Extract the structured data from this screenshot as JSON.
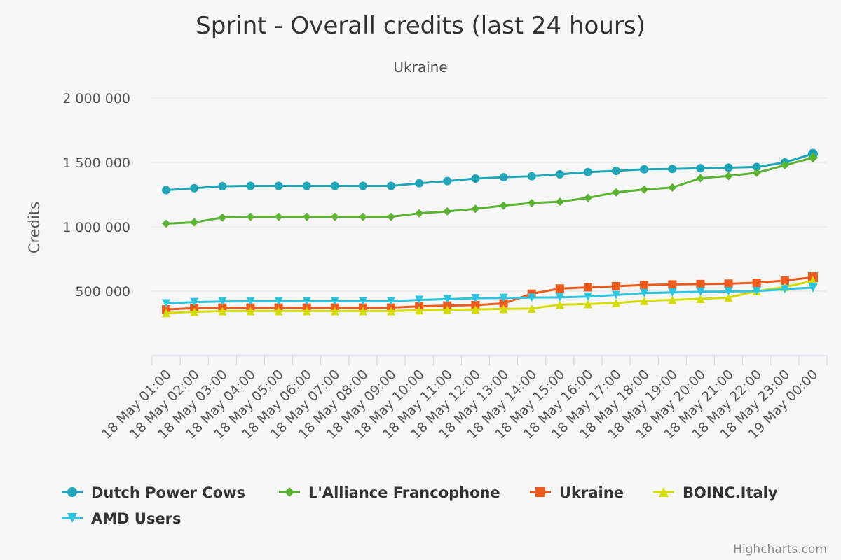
{
  "chart_data": {
    "type": "line",
    "title": "Sprint - Overall credits (last 24 hours)",
    "subtitle": "Ukraine",
    "ylabel": "Credits",
    "xlabel": "",
    "ylim": [
      0,
      2000000
    ],
    "y_ticks": [
      {
        "value": 500000,
        "label": "500 000"
      },
      {
        "value": 1000000,
        "label": "1 000 000"
      },
      {
        "value": 1500000,
        "label": "1 500 000"
      },
      {
        "value": 2000000,
        "label": "2 000 000"
      }
    ],
    "categories": [
      "18 May 01:00",
      "18 May 02:00",
      "18 May 03:00",
      "18 May 04:00",
      "18 May 05:00",
      "18 May 06:00",
      "18 May 07:00",
      "18 May 08:00",
      "18 May 09:00",
      "18 May 10:00",
      "18 May 11:00",
      "18 May 12:00",
      "18 May 13:00",
      "18 May 14:00",
      "18 May 15:00",
      "18 May 16:00",
      "18 May 17:00",
      "18 May 18:00",
      "18 May 19:00",
      "18 May 20:00",
      "18 May 21:00",
      "18 May 22:00",
      "18 May 23:00",
      "19 May 00:00"
    ],
    "grid": {
      "horizontal": true,
      "vertical": false
    },
    "legend_position": "bottom",
    "series": [
      {
        "name": "Dutch Power Cows",
        "color": "#20a6b8",
        "marker": "circle",
        "values": [
          1285000,
          1300000,
          1315000,
          1318000,
          1318000,
          1318000,
          1318000,
          1318000,
          1318000,
          1338000,
          1355000,
          1375000,
          1385000,
          1393000,
          1408000,
          1425000,
          1435000,
          1447000,
          1450000,
          1455000,
          1460000,
          1465000,
          1500000,
          1567000
        ]
      },
      {
        "name": "L'Alliance Francophone",
        "color": "#5bb332",
        "marker": "diamond",
        "values": [
          1025000,
          1035000,
          1072000,
          1078000,
          1078000,
          1078000,
          1078000,
          1078000,
          1078000,
          1105000,
          1120000,
          1140000,
          1165000,
          1185000,
          1195000,
          1225000,
          1268000,
          1290000,
          1305000,
          1378000,
          1395000,
          1420000,
          1478000,
          1537000
        ]
      },
      {
        "name": "Ukraine",
        "color": "#ec5a1e",
        "marker": "square",
        "values": [
          358000,
          368000,
          372000,
          372000,
          372000,
          372000,
          372000,
          372000,
          372000,
          382000,
          388000,
          392000,
          405000,
          480000,
          520000,
          530000,
          538000,
          548000,
          552000,
          555000,
          558000,
          565000,
          582000,
          608000
        ]
      },
      {
        "name": "BOINC.Italy",
        "color": "#d4dc00",
        "marker": "triangle",
        "values": [
          330000,
          340000,
          345000,
          346000,
          346000,
          346000,
          346000,
          346000,
          346000,
          352000,
          355000,
          358000,
          362000,
          365000,
          395000,
          400000,
          408000,
          425000,
          432000,
          440000,
          450000,
          500000,
          532000,
          580000
        ]
      },
      {
        "name": "AMD Users",
        "color": "#2ec5e0",
        "marker": "triangle-down",
        "values": [
          405000,
          415000,
          420000,
          421000,
          421000,
          421000,
          421000,
          421000,
          421000,
          432000,
          438000,
          445000,
          448000,
          450000,
          452000,
          458000,
          470000,
          485000,
          490000,
          495000,
          498000,
          500000,
          515000,
          528000
        ]
      }
    ]
  },
  "credits_text": "Highcharts.com"
}
